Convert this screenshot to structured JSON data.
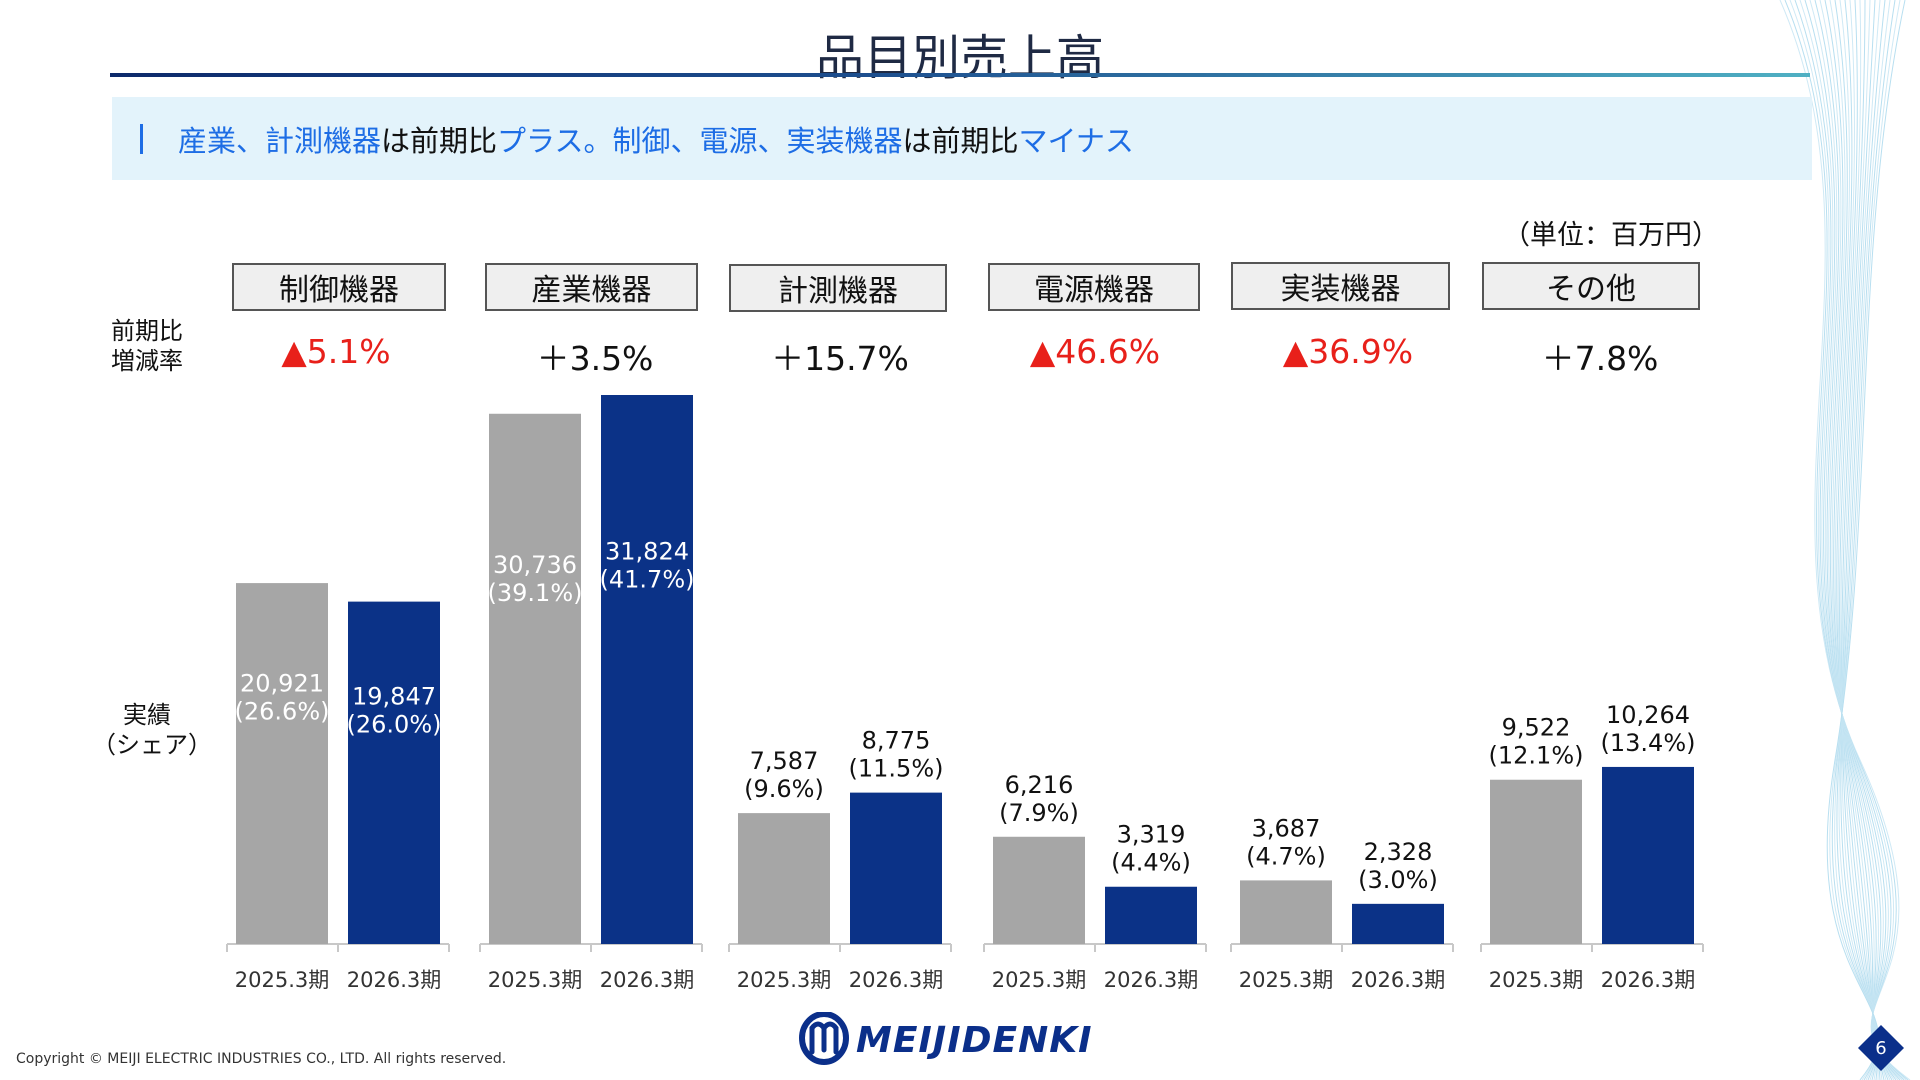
{
  "title": "品目別売上高",
  "headline": {
    "segments": [
      {
        "text": "産業、計測機器",
        "color": "blue"
      },
      {
        "text": "は前期比",
        "color": "black"
      },
      {
        "text": "プラス。",
        "color": "blue"
      },
      {
        "text": "制御、電源、実装機器",
        "color": "blue"
      },
      {
        "text": "は前期比",
        "color": "black"
      },
      {
        "text": "マイナス",
        "color": "blue"
      }
    ]
  },
  "unit_label": "（単位：百万円）",
  "row_labels": {
    "change_line1": "前期比",
    "change_line2": "増減率",
    "actual_line1": "実績",
    "actual_line2": "（シェア）"
  },
  "colors": {
    "prev_bar": "#a6a6a6",
    "curr_bar": "#0b3287",
    "negative_change": "#e8201a",
    "accent_blue": "#1d6de5"
  },
  "chart_data": {
    "type": "bar",
    "unit": "百万円",
    "series": [
      {
        "name": "2025.3期",
        "values": [
          20921,
          30736,
          7587,
          6216,
          3687,
          9522
        ],
        "shares": [
          "(26.6%)",
          "(39.1%)",
          "(9.6%)",
          "(7.9%)",
          "(4.7%)",
          "(12.1%)"
        ]
      },
      {
        "name": "2026.3期",
        "values": [
          19847,
          31824,
          8775,
          3319,
          2328,
          10264
        ],
        "shares": [
          "(26.0%)",
          "(41.7%)",
          "(11.5%)",
          "(4.4%)",
          "(3.0%)",
          "(13.4%)"
        ]
      }
    ],
    "categories": [
      {
        "name": "制御機器",
        "change": "▲5.1%",
        "negative": true
      },
      {
        "name": "産業機器",
        "change": "＋3.5%",
        "negative": false
      },
      {
        "name": "計測機器",
        "change": "＋15.7%",
        "negative": false
      },
      {
        "name": "電源機器",
        "change": "▲46.6%",
        "negative": true
      },
      {
        "name": "実装機器",
        "change": "▲36.9%",
        "negative": true
      },
      {
        "name": "その他",
        "change": "＋7.8%",
        "negative": false
      }
    ],
    "ylim": [
      0,
      31824
    ],
    "grid": false,
    "legend": "none"
  },
  "footer": {
    "copyright": "Copyright © MEIJI ELECTRIC INDUSTRIES CO., LTD. All rights reserved.",
    "logo_text": "MEIJIDENKI",
    "page_number": "6"
  }
}
